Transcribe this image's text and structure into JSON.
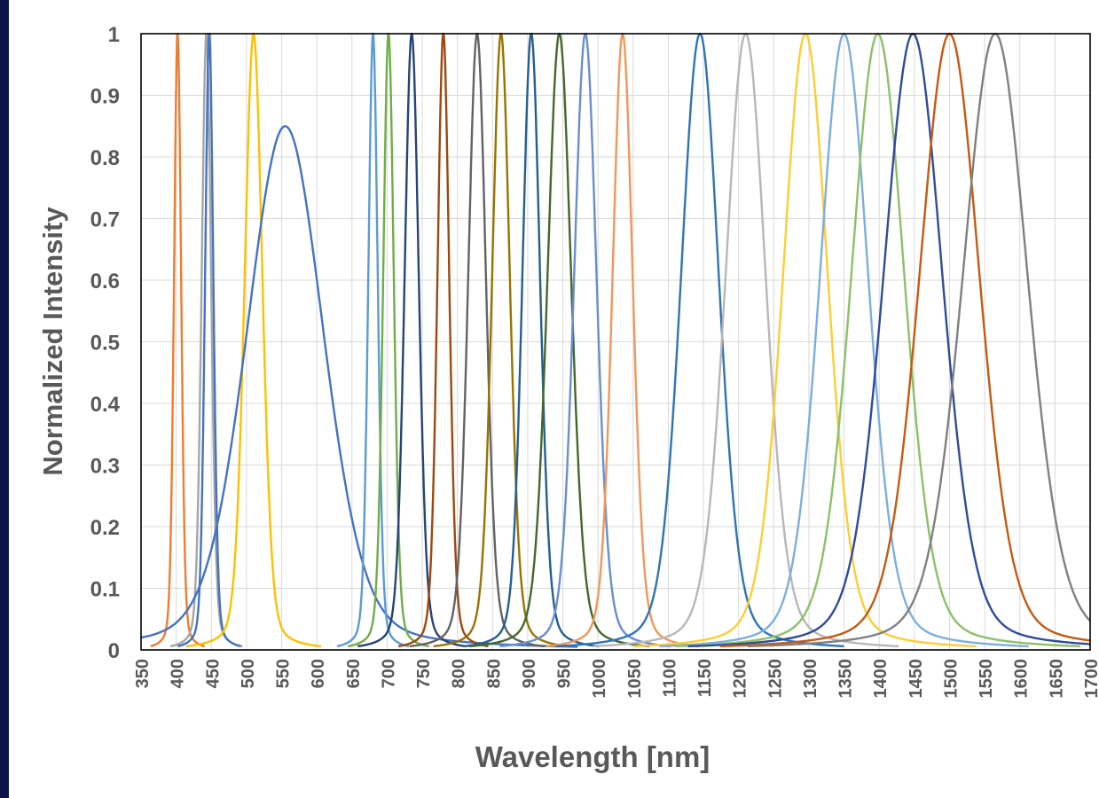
{
  "chart_data": {
    "type": "line",
    "title": "",
    "xlabel": "Wavelength [nm]",
    "ylabel": "Normalized Intensity",
    "xlim": [
      350,
      1700
    ],
    "ylim": [
      0,
      1
    ],
    "grid": true,
    "legend": "none",
    "x_ticks": [
      "350",
      "400",
      "450",
      "500",
      "550",
      "600",
      "650",
      "700",
      "750",
      "800",
      "850",
      "900",
      "950",
      "1000",
      "1050",
      "1100",
      "1150",
      "1200",
      "1250",
      "1300",
      "1350",
      "1400",
      "1450",
      "1500",
      "1550",
      "1600",
      "1650",
      "1700"
    ],
    "y_ticks": [
      "0",
      "0.1",
      "0.2",
      "0.3",
      "0.4",
      "0.5",
      "0.6",
      "0.7",
      "0.8",
      "0.9",
      "1"
    ],
    "series": [
      {
        "peak": 402,
        "fwhm": 12,
        "color": "#ed7d31"
      },
      {
        "peak": 443,
        "fwhm": 16,
        "color": "#a5a5a5"
      },
      {
        "peak": 447,
        "fwhm": 14,
        "color": "#4472c4"
      },
      {
        "peak": 510,
        "fwhm": 30,
        "color": "#ffc000"
      },
      {
        "peak": 555,
        "fwhm": 130,
        "peak_value": 0.85,
        "color": "#4472c4"
      },
      {
        "peak": 680,
        "fwhm": 16,
        "color": "#5b9bd5"
      },
      {
        "peak": 702,
        "fwhm": 18,
        "color": "#70ad47"
      },
      {
        "peak": 735,
        "fwhm": 24,
        "color": "#264478"
      },
      {
        "peak": 780,
        "fwhm": 20,
        "color": "#9e480e"
      },
      {
        "peak": 828,
        "fwhm": 30,
        "color": "#636363"
      },
      {
        "peak": 862,
        "fwhm": 30,
        "color": "#997300"
      },
      {
        "peak": 905,
        "fwhm": 30,
        "color": "#255e91"
      },
      {
        "peak": 945,
        "fwhm": 40,
        "color": "#43682b"
      },
      {
        "peak": 982,
        "fwhm": 38,
        "color": "#698ed0"
      },
      {
        "peak": 1035,
        "fwhm": 34,
        "color": "#f1975a"
      },
      {
        "peak": 1145,
        "fwhm": 64,
        "color": "#2e75b6"
      },
      {
        "peak": 1210,
        "fwhm": 68,
        "color": "#b7b7b7"
      },
      {
        "peak": 1295,
        "fwhm": 76,
        "color": "#ffcd33"
      },
      {
        "peak": 1350,
        "fwhm": 82,
        "color": "#7cafdd"
      },
      {
        "peak": 1398,
        "fwhm": 90,
        "color": "#8cc168"
      },
      {
        "peak": 1448,
        "fwhm": 100,
        "color": "#2f4b9c"
      },
      {
        "peak": 1500,
        "fwhm": 102,
        "color": "#c55a11"
      },
      {
        "peak": 1565,
        "fwhm": 110,
        "color": "#808080"
      }
    ]
  }
}
